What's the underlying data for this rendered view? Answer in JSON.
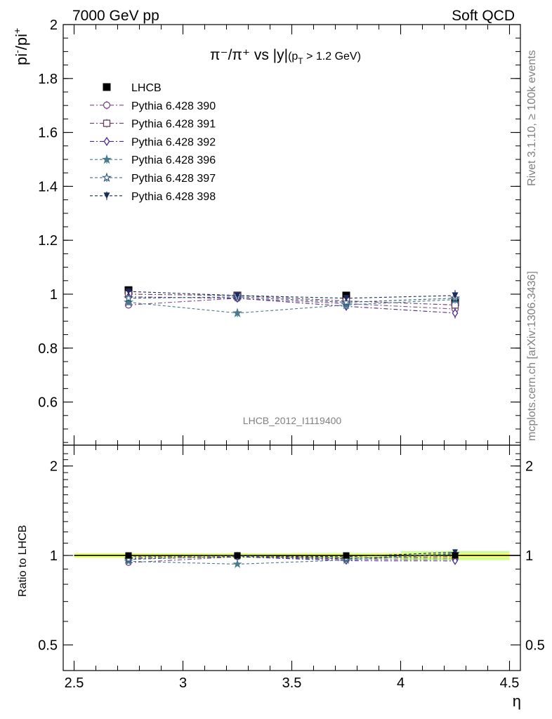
{
  "header": {
    "left": "7000 GeV pp",
    "right": "Soft QCD"
  },
  "side_labels": {
    "rivet": "Rivet 3.1.10, ≥ 100k events",
    "mcplots": "mcplots.cern.ch [arXiv:1306.3436]"
  },
  "plot_title": {
    "main": "π⁻/π⁺ vs |y|",
    "cut": "(p",
    "cut_sub": "T",
    "cut_rest": " > 1.2 GeV)"
  },
  "ylabel_top": {
    "base": "pi",
    "sup1": "-",
    "slash": "/pi",
    "sup2": "+"
  },
  "ylabel_ratio": "Ratio to LHCB",
  "xlabel": "η",
  "watermark": "LHCB_2012_I1119400",
  "colors": {
    "data": "#000000",
    "p390": "#7b4a82",
    "p391": "#6b3a5e",
    "p392": "#4b2a8a",
    "p396": "#4a7a8e",
    "p397": "#2e5a7a",
    "p398": "#1a2a5e",
    "band_inner": "#ffff66",
    "band_outer": "#ccff99"
  },
  "chart_data": [
    {
      "type": "scatter",
      "panel": "main",
      "xlim": [
        2.45,
        4.55
      ],
      "ylim": [
        0.44,
        2.0
      ],
      "x_ticks": [
        "2.5",
        "3",
        "3.5",
        "4",
        "4.5"
      ],
      "y_ticks": [
        "0.6",
        "0.8",
        "1",
        "1.2",
        "1.4",
        "1.6",
        "1.8",
        "2"
      ],
      "x": [
        2.75,
        3.25,
        3.75,
        4.25
      ],
      "series": [
        {
          "name": "LHCB",
          "marker": "filled-square",
          "values": [
            1.015,
            0.995,
            0.995,
            0.97
          ],
          "errors": [
            0.012,
            0.012,
            0.012,
            0.015
          ]
        },
        {
          "name": "Pythia 6.428 390",
          "marker": "open-circle",
          "values": [
            0.96,
            0.985,
            0.965,
            0.945
          ],
          "errors": [
            0.012,
            0.012,
            0.012,
            0.015
          ]
        },
        {
          "name": "Pythia 6.428 391",
          "marker": "open-square",
          "values": [
            1.0,
            0.995,
            0.975,
            0.96
          ],
          "errors": [
            0.012,
            0.012,
            0.012,
            0.015
          ]
        },
        {
          "name": "Pythia 6.428 392",
          "marker": "open-diamond",
          "values": [
            0.99,
            0.985,
            0.955,
            0.93
          ],
          "errors": [
            0.012,
            0.012,
            0.015,
            0.02
          ]
        },
        {
          "name": "Pythia 6.428 396",
          "marker": "filled-star",
          "values": [
            0.97,
            0.93,
            0.96,
            0.98
          ],
          "errors": [
            0.012,
            0.015,
            0.015,
            0.015
          ]
        },
        {
          "name": "Pythia 6.428 397",
          "marker": "open-star",
          "values": [
            0.985,
            0.99,
            0.97,
            0.985
          ],
          "errors": [
            0.012,
            0.012,
            0.012,
            0.015
          ]
        },
        {
          "name": "Pythia 6.428 398",
          "marker": "filled-triangle-down",
          "values": [
            1.01,
            0.995,
            0.985,
            0.995
          ],
          "errors": [
            0.012,
            0.012,
            0.012,
            0.02
          ]
        }
      ]
    },
    {
      "type": "scatter",
      "panel": "ratio",
      "ylabel": "Ratio to LHCB",
      "xlabel": "η",
      "xlim": [
        2.45,
        4.55
      ],
      "ylim": [
        0.41,
        2.35
      ],
      "log_y": true,
      "x_ticks": [
        "2.5",
        "3",
        "3.5",
        "4",
        "4.5"
      ],
      "y_ticks": [
        "0.5",
        "1",
        "2"
      ],
      "x": [
        2.75,
        3.25,
        3.75,
        4.25
      ],
      "band": {
        "x": [
          2.5,
          3.0,
          3.5,
          4.0,
          4.5
        ],
        "inner": [
          0.012,
          0.012,
          0.012,
          0.015
        ],
        "outer": [
          0.018,
          0.018,
          0.02,
          0.035
        ]
      },
      "series": [
        {
          "name": "Pythia 6.428 390",
          "values": [
            0.946,
            0.99,
            0.97,
            0.974
          ]
        },
        {
          "name": "Pythia 6.428 391",
          "values": [
            0.985,
            1.0,
            0.98,
            0.99
          ]
        },
        {
          "name": "Pythia 6.428 392",
          "values": [
            0.975,
            0.99,
            0.96,
            0.959
          ]
        },
        {
          "name": "Pythia 6.428 396",
          "values": [
            0.956,
            0.935,
            0.965,
            1.01
          ]
        },
        {
          "name": "Pythia 6.428 397",
          "values": [
            0.97,
            0.995,
            0.975,
            1.015
          ]
        },
        {
          "name": "Pythia 6.428 398",
          "values": [
            0.995,
            1.0,
            0.99,
            1.026
          ]
        }
      ]
    }
  ]
}
